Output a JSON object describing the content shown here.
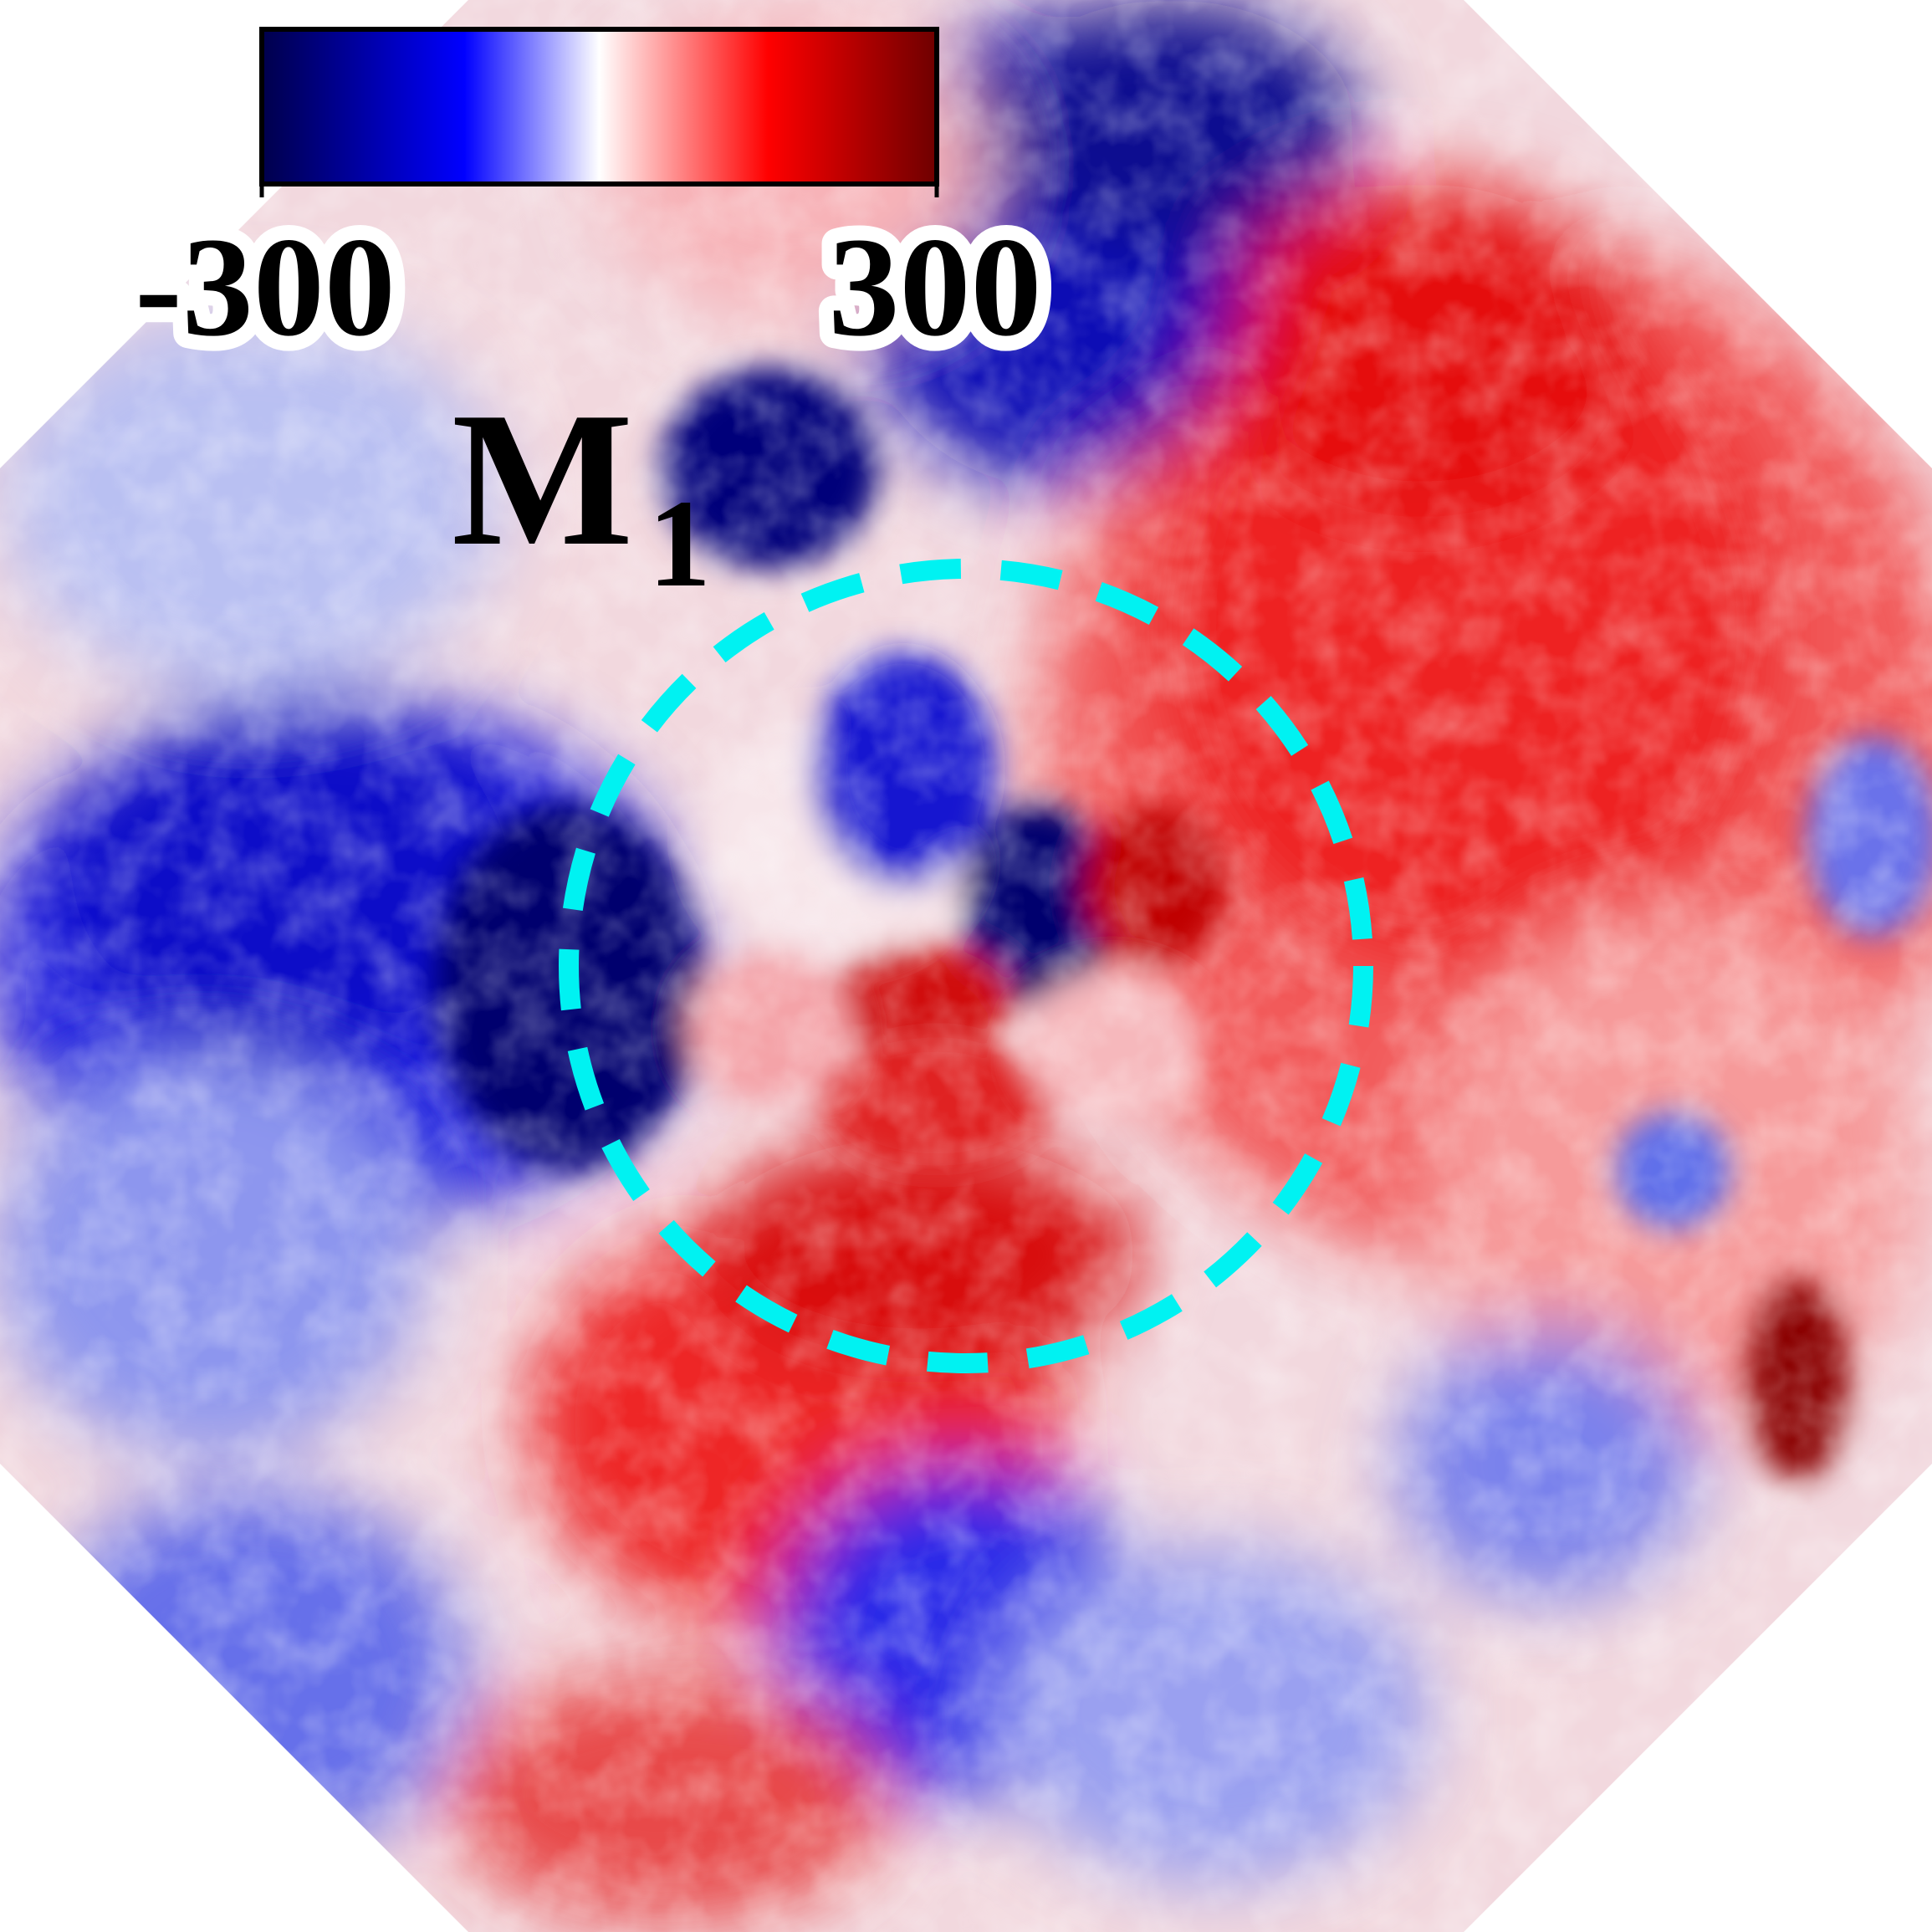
{
  "figure": {
    "panel_label": "M",
    "panel_label_subscript": "1",
    "colorbar": {
      "min_label": "-300",
      "max_label": "300",
      "min": -300,
      "max": 300,
      "colors": [
        "#00004b",
        "#0000ff",
        "#ffffff",
        "#ff0000",
        "#6e0000"
      ]
    },
    "aperture_circle": {
      "color": "#00f2f2",
      "style": "dashed"
    }
  }
}
